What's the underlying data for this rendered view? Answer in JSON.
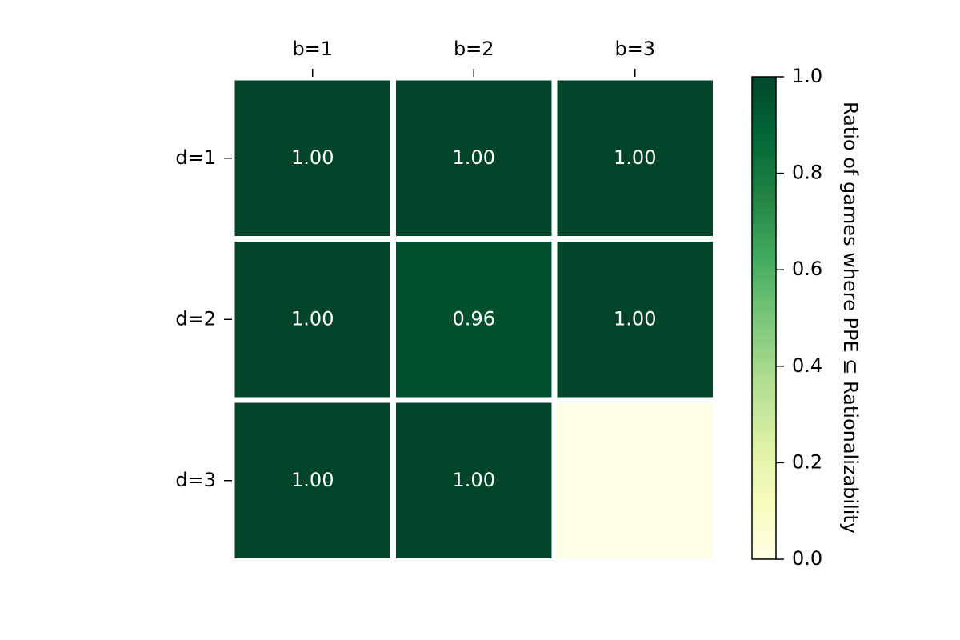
{
  "chart_data": {
    "type": "heatmap",
    "columns": [
      "b=1",
      "b=2",
      "b=3"
    ],
    "rows": [
      "d=1",
      "d=2",
      "d=3"
    ],
    "values": [
      [
        1,
        1,
        1
      ],
      [
        1,
        0.96,
        1
      ],
      [
        1,
        1,
        null
      ]
    ],
    "value_labels": [
      [
        "1.00",
        "1.00",
        "1.00"
      ],
      [
        "1.00",
        "0.96",
        "1.00"
      ],
      [
        "1.00",
        "1.00",
        null
      ]
    ],
    "colormap": "YlGn",
    "clim": [
      0,
      1
    ],
    "cticks": [
      {
        "value": 0,
        "label": "0.0"
      },
      {
        "value": 0.2,
        "label": "0.2"
      },
      {
        "value": 0.4,
        "label": "0.4"
      },
      {
        "value": 0.6,
        "label": "0.6"
      },
      {
        "value": 0.8,
        "label": "0.8"
      },
      {
        "value": 1,
        "label": "1.0"
      }
    ],
    "colorbar_label": "Ratio of games where PPE ⊆ Rationalizability"
  }
}
